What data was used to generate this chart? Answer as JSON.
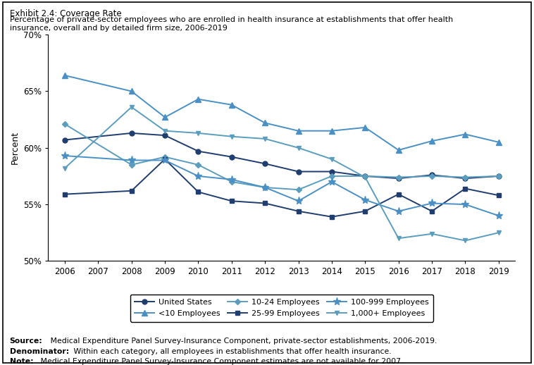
{
  "title_line1": "Exhibit 2.4: Coverage Rate",
  "title_line2a": "Percentage of private-sector employees who are enrolled in health insurance at establishments that offer health",
  "title_line2b": "insurance, overall and by detailed firm size, 2006-2019",
  "ylabel": "Percent",
  "ylim": [
    50,
    70
  ],
  "yticks": [
    50,
    55,
    60,
    65,
    70
  ],
  "years": [
    2006,
    2008,
    2009,
    2010,
    2011,
    2012,
    2013,
    2014,
    2015,
    2016,
    2017,
    2018,
    2019
  ],
  "xticks": [
    2006,
    2007,
    2008,
    2009,
    2010,
    2011,
    2012,
    2013,
    2014,
    2015,
    2016,
    2017,
    2018,
    2019
  ],
  "series": [
    {
      "label": "United States",
      "color": "#1f3d6e",
      "marker": "o",
      "markersize": 5,
      "data": [
        60.7,
        61.3,
        61.1,
        59.7,
        59.2,
        58.6,
        57.9,
        57.9,
        57.5,
        57.3,
        57.6,
        57.3,
        57.5
      ]
    },
    {
      "label": "<10 Employees",
      "color": "#4a90c4",
      "marker": "^",
      "markersize": 6,
      "data": [
        66.4,
        65.0,
        62.7,
        64.3,
        63.8,
        62.2,
        61.5,
        61.5,
        61.8,
        59.8,
        60.6,
        61.2,
        60.5
      ]
    },
    {
      "label": "10-24 Employees",
      "color": "#5b9dbf",
      "marker": "D",
      "markersize": 4,
      "data": [
        62.1,
        58.5,
        59.2,
        58.5,
        57.0,
        56.5,
        56.3,
        57.5,
        57.5,
        57.4,
        57.5,
        57.4,
        57.5
      ]
    },
    {
      "label": "25-99 Employees",
      "color": "#1f3d6e",
      "marker": "s",
      "markersize": 5,
      "data": [
        55.9,
        56.2,
        59.0,
        56.1,
        55.3,
        55.1,
        54.4,
        53.9,
        54.4,
        55.9,
        54.4,
        56.4,
        55.8
      ]
    },
    {
      "label": "100-999 Employees",
      "color": "#4a90c4",
      "marker": "*",
      "markersize": 8,
      "data": [
        59.3,
        58.9,
        58.9,
        57.5,
        57.2,
        56.5,
        55.3,
        57.0,
        55.4,
        54.4,
        55.1,
        55.0,
        54.0
      ]
    },
    {
      "label": "1,000+ Employees",
      "color": "#5b9dbf",
      "marker": "v",
      "markersize": 5,
      "data": [
        58.2,
        63.6,
        61.5,
        61.3,
        61.0,
        60.8,
        60.0,
        59.0,
        57.4,
        52.0,
        52.4,
        51.8,
        52.5
      ]
    }
  ],
  "source_bold": "Source:",
  "source_rest": " Medical Expenditure Panel Survey-Insurance Component, private-sector establishments, 2006-2019.",
  "denom_bold": "Denominator:",
  "denom_rest": " Within each category, all employees in establishments that offer health insurance.",
  "note_bold": "Note:",
  "note_rest": " Medical Expenditure Panel Survey-Insurance Component estimates are not available for 2007."
}
